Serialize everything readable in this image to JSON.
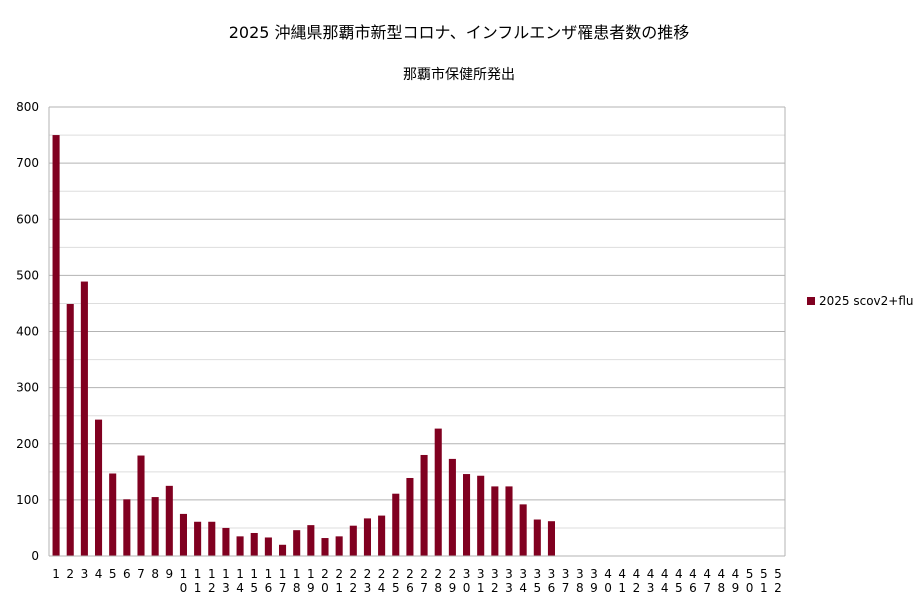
{
  "chart_data": {
    "type": "bar",
    "title": "2025 沖縄県那覇市新型コロナ、インフルエンザ罹患者数の推移",
    "subtitle": "那覇市保健所発出",
    "xlabel": "",
    "ylabel": "",
    "ylim": [
      0,
      800
    ],
    "yticks": [
      "0",
      "100",
      "200",
      "300",
      "400",
      "500",
      "600",
      "700",
      "800"
    ],
    "grid": true,
    "legend_position": "right",
    "categories": [
      "1",
      "2",
      "3",
      "4",
      "5",
      "6",
      "7",
      "8",
      "9",
      "10",
      "11",
      "12",
      "13",
      "14",
      "15",
      "16",
      "17",
      "18",
      "19",
      "20",
      "21",
      "22",
      "23",
      "24",
      "25",
      "26",
      "27",
      "28",
      "29",
      "30",
      "31",
      "32",
      "33",
      "34",
      "35",
      "36",
      "37",
      "38",
      "39",
      "40",
      "41",
      "42",
      "43",
      "44",
      "45",
      "46",
      "47",
      "48",
      "49",
      "50",
      "51",
      "52"
    ],
    "series": [
      {
        "name": "2025 scov2+flu",
        "color": "#800020",
        "values": [
          750,
          449,
          489,
          243,
          147,
          101,
          179,
          105,
          125,
          75,
          61,
          61,
          50,
          35,
          41,
          33,
          20,
          46,
          55,
          32,
          35,
          54,
          67,
          72,
          111,
          139,
          180,
          227,
          173,
          146,
          143,
          124,
          124,
          92,
          65,
          62,
          null,
          null,
          null,
          null,
          null,
          null,
          null,
          null,
          null,
          null,
          null,
          null,
          null,
          null,
          null,
          null
        ]
      }
    ]
  }
}
